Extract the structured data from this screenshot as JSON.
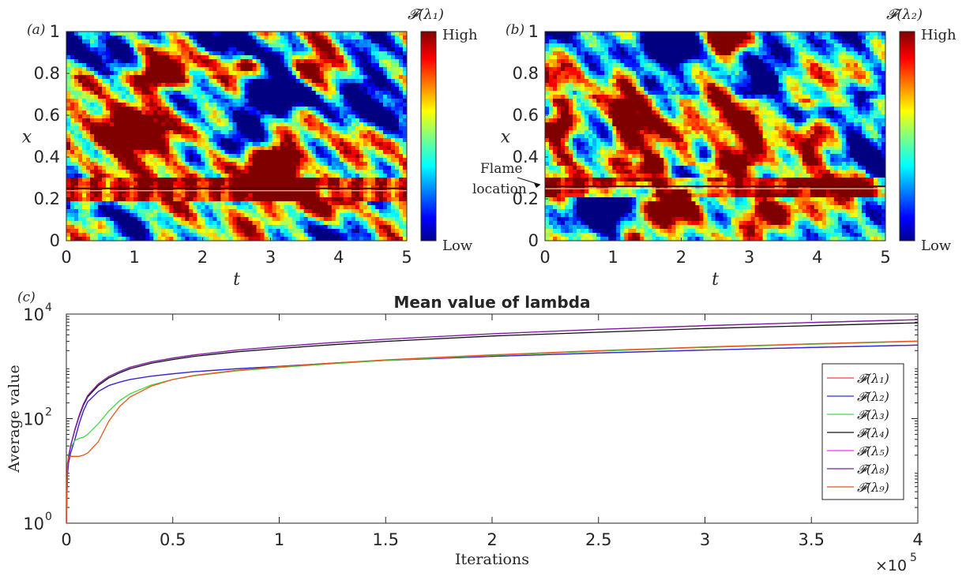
{
  "chart_data": [
    {
      "panel": "(a)",
      "type": "heatmap",
      "xlabel": "t",
      "ylabel": "x",
      "xlim": [
        0,
        5
      ],
      "ylim": [
        0,
        1
      ],
      "xticks": [
        "0",
        "1",
        "2",
        "3",
        "4",
        "5"
      ],
      "yticks": [
        "0",
        "0.2",
        "0.4",
        "0.6",
        "0.8",
        "1"
      ],
      "colorbar": {
        "title": "𝓕(λ₁)",
        "high": "High",
        "low": "Low",
        "colormap": "jet"
      },
      "flame_x": 0.25
    },
    {
      "panel": "(b)",
      "type": "heatmap",
      "xlabel": "t",
      "ylabel": "x",
      "xlim": [
        0,
        5
      ],
      "ylim": [
        0,
        1
      ],
      "xticks": [
        "0",
        "1",
        "2",
        "3",
        "4",
        "5"
      ],
      "yticks": [
        "0",
        "0.2",
        "0.4",
        "0.6",
        "0.8",
        "1"
      ],
      "colorbar": {
        "title": "𝓕(λ₂)",
        "high": "High",
        "low": "Low",
        "colormap": "jet"
      },
      "annotation": {
        "line1": "Flame",
        "line2": "location",
        "x": 0.26
      },
      "flame_x": 0.26
    },
    {
      "panel": "(c)",
      "type": "line",
      "title": "Mean value of lambda",
      "xlabel": "Iterations",
      "ylabel": "Average value",
      "x_multiplier": "×10",
      "x_multiplier_exp": "5",
      "xlim": [
        0,
        4
      ],
      "ylim": [
        1,
        10000
      ],
      "yscale": "log",
      "xticks": [
        "0",
        "0.5",
        "1",
        "1.5",
        "2",
        "2.5",
        "3",
        "3.5",
        "4"
      ],
      "yticks": [
        {
          "base": "10",
          "exp": "0",
          "value": 1
        },
        {
          "base": "10",
          "exp": "2",
          "value": 100
        },
        {
          "base": "10",
          "exp": "4",
          "value": 10000
        }
      ],
      "legend_position": "right",
      "x": [
        0,
        0.005,
        0.01,
        0.02,
        0.04,
        0.06,
        0.08,
        0.1,
        0.15,
        0.2,
        0.25,
        0.3,
        0.4,
        0.5,
        0.6,
        0.8,
        1.0,
        1.25,
        1.5,
        2.0,
        2.5,
        3.0,
        3.5,
        4.0
      ],
      "series": [
        {
          "name": "𝓕(λ₁)",
          "color": "#ff3b3b",
          "y": [
            1,
            8,
            14,
            22,
            40,
            80,
            140,
            210,
            330,
            430,
            500,
            560,
            650,
            720,
            790,
            900,
            1000,
            1150,
            1300,
            1550,
            1800,
            2050,
            2300,
            2550
          ]
        },
        {
          "name": "𝓕(λ₂)",
          "color": "#2a2ae8",
          "y": [
            1,
            8,
            14,
            22,
            40,
            80,
            140,
            210,
            330,
            430,
            500,
            560,
            650,
            720,
            790,
            900,
            1000,
            1150,
            1300,
            1550,
            1800,
            2050,
            2300,
            2550
          ]
        },
        {
          "name": "𝓕(λ₃)",
          "color": "#3cdc3c",
          "y": [
            1,
            10,
            20,
            28,
            38,
            42,
            44,
            50,
            80,
            140,
            220,
            300,
            440,
            560,
            660,
            820,
            950,
            1120,
            1300,
            1620,
            1950,
            2300,
            2650,
            3000
          ]
        },
        {
          "name": "𝓕(λ₄)",
          "color": "#111111",
          "y": [
            1,
            9,
            18,
            30,
            60,
            110,
            180,
            260,
            430,
            600,
            750,
            900,
            1150,
            1350,
            1550,
            1900,
            2200,
            2600,
            3000,
            3800,
            4500,
            5300,
            6000,
            6800
          ]
        },
        {
          "name": "𝓕(λ₅)",
          "color": "#ff2cff",
          "y": [
            1,
            9,
            18,
            30,
            62,
            115,
            190,
            275,
            460,
            640,
            800,
            960,
            1220,
            1440,
            1650,
            2050,
            2400,
            2850,
            3300,
            4200,
            5100,
            6000,
            6900,
            7800
          ]
        },
        {
          "name": "𝓕(λ₈)",
          "color": "#7a1fa2",
          "y": [
            1,
            9,
            18,
            30,
            62,
            115,
            190,
            275,
            460,
            640,
            800,
            960,
            1220,
            1440,
            1650,
            2050,
            2400,
            2850,
            3300,
            4200,
            5100,
            6000,
            6900,
            7800
          ]
        },
        {
          "name": "𝓕(λ₉)",
          "color": "#e8561f",
          "y": [
            1,
            14,
            18,
            19,
            19,
            19,
            20,
            22,
            36,
            90,
            170,
            260,
            420,
            560,
            670,
            840,
            980,
            1150,
            1330,
            1660,
            2000,
            2350,
            2700,
            3050
          ]
        }
      ]
    }
  ]
}
